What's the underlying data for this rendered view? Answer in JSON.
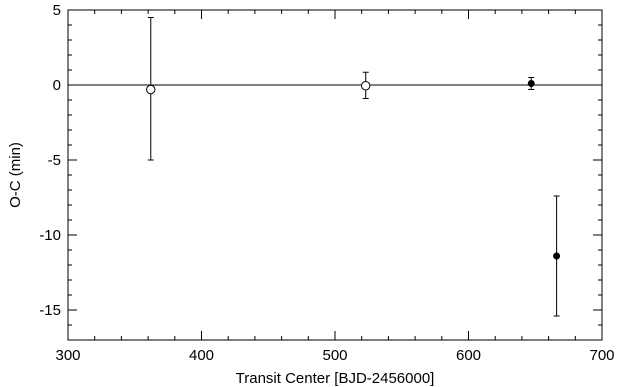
{
  "chart_data": {
    "type": "scatter",
    "title": "",
    "xlabel": "Transit Center [BJD-2456000]",
    "ylabel": "O-C (min)",
    "xlim": [
      300,
      700
    ],
    "ylim": [
      -17,
      5
    ],
    "x_major_ticks": [
      300,
      400,
      500,
      600,
      700
    ],
    "x_minor_step": 20,
    "y_major_ticks": [
      5,
      0,
      -5,
      -10,
      -15
    ],
    "y_minor_step": 1,
    "x_tick_labels": [
      "300",
      "400",
      "500",
      "600",
      "700"
    ],
    "y_tick_labels": [
      "5",
      "0",
      "-5",
      "-10",
      "-15"
    ],
    "zero_line": 0,
    "grid": false,
    "legend": "none",
    "points": [
      {
        "x": 362,
        "y": -0.3,
        "err_low": -5.0,
        "err_high": 4.5,
        "marker": "open-circle"
      },
      {
        "x": 523,
        "y": -0.05,
        "err_low": -0.9,
        "err_high": 0.85,
        "marker": "open-circle"
      },
      {
        "x": 647,
        "y": 0.1,
        "err_low": -0.3,
        "err_high": 0.5,
        "marker": "filled-circle"
      },
      {
        "x": 666,
        "y": -11.4,
        "err_low": -15.4,
        "err_high": -7.4,
        "marker": "filled-circle"
      }
    ],
    "colors": {
      "ink": "#000000",
      "background": "#ffffff"
    }
  }
}
